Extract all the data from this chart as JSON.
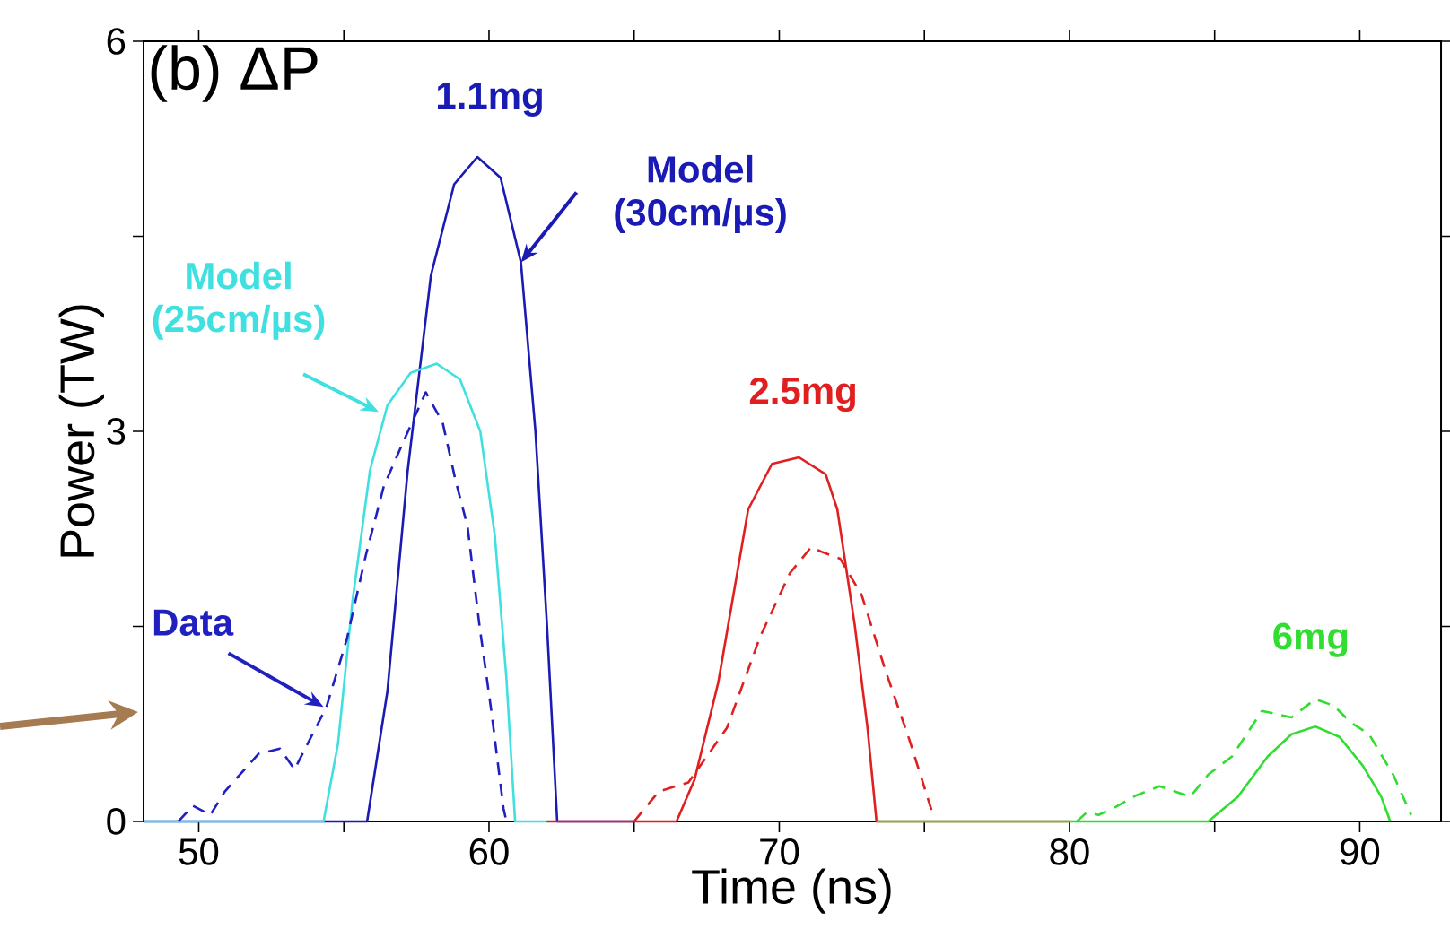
{
  "chart_data": {
    "type": "line",
    "xlabel": "Time (ns)",
    "ylabel": "Power (TW)",
    "xlim": [
      48.1,
      92.8
    ],
    "ylim": [
      0,
      6
    ],
    "xticks": [
      50,
      {
        "value": 55,
        "label": null
      },
      60,
      {
        "value": 65,
        "label": null
      },
      70,
      {
        "value": 75,
        "label": null
      },
      80,
      {
        "value": 85,
        "label": null
      },
      90
    ],
    "yticks": [
      0,
      {
        "value": 1.5,
        "label": null
      },
      3,
      {
        "value": 4.5,
        "label": null
      },
      6
    ],
    "series": [
      {
        "color": "#1a1ab4",
        "line_style": "solid",
        "x": [
          48.1,
          55.8,
          56.5,
          57.2,
          58.0,
          58.8,
          59.6,
          60.4,
          61.1,
          61.6,
          62.0,
          62.35,
          65.0
        ],
        "values": [
          0,
          0,
          1.0,
          2.7,
          4.2,
          4.9,
          5.11,
          4.95,
          4.3,
          3.0,
          1.5,
          0,
          0
        ]
      },
      {
        "color": "#40e0e0",
        "line_style": "solid",
        "x": [
          48.1,
          54.3,
          54.8,
          55.3,
          55.9,
          56.5,
          57.3,
          58.2,
          59.0,
          59.7,
          60.2,
          60.6,
          60.9,
          62.0
        ],
        "values": [
          0,
          0,
          0.6,
          1.7,
          2.7,
          3.2,
          3.45,
          3.52,
          3.4,
          3.0,
          2.2,
          1.1,
          0,
          0
        ]
      },
      {
        "color": "#2020c0",
        "line_style": "dashed",
        "x": [
          49.3,
          49.8,
          50.4,
          50.9,
          52.06,
          52.8,
          53.3,
          54.4,
          55.1,
          55.76,
          56.38,
          56.99,
          57.82,
          58.4,
          58.85,
          59.26,
          59.67,
          60.08,
          60.5,
          60.6
        ],
        "values": [
          0,
          0.12,
          0.05,
          0.23,
          0.52,
          0.56,
          0.4,
          0.88,
          1.4,
          2.05,
          2.58,
          2.89,
          3.3,
          3.07,
          2.62,
          2.27,
          1.51,
          0.85,
          0.1,
          0
        ]
      },
      {
        "color": "#e02020",
        "line_style": "solid",
        "x": [
          62.0,
          66.46,
          67.08,
          67.9,
          68.93,
          69.75,
          70.68,
          71.6,
          72.0,
          72.6,
          73.04,
          73.35,
          80.0
        ],
        "values": [
          0,
          0,
          0.32,
          1.07,
          2.4,
          2.75,
          2.8,
          2.67,
          2.4,
          1.51,
          0.72,
          0,
          0
        ]
      },
      {
        "color": "#e02020",
        "line_style": "dashed",
        "x": [
          65.0,
          65.85,
          66.87,
          68.2,
          69.34,
          70.37,
          71.1,
          71.5,
          72.1,
          72.84,
          73.66,
          74.48,
          75.3
        ],
        "values": [
          0,
          0.23,
          0.3,
          0.72,
          1.42,
          1.91,
          2.11,
          2.07,
          2.02,
          1.74,
          1.16,
          0.63,
          0.05
        ]
      },
      {
        "color": "#30dd30",
        "line_style": "solid",
        "x": [
          73.35,
          84.78,
          85.8,
          86.83,
          87.65,
          88.47,
          89.3,
          90.1,
          90.74,
          91.05
        ],
        "values": [
          0,
          0,
          0.19,
          0.5,
          0.67,
          0.73,
          0.65,
          0.43,
          0.19,
          0
        ]
      },
      {
        "color": "#30dd30",
        "line_style": "dashed",
        "x": [
          80.25,
          80.6,
          81.0,
          81.5,
          82.3,
          83.1,
          84.16,
          84.78,
          85.6,
          86.63,
          87.65,
          88.47,
          89.1,
          89.7,
          90.32,
          91.15,
          91.77
        ],
        "values": [
          0,
          0.07,
          0.05,
          0.1,
          0.2,
          0.27,
          0.19,
          0.36,
          0.5,
          0.85,
          0.8,
          0.94,
          0.89,
          0.76,
          0.67,
          0.36,
          0.05
        ]
      }
    ],
    "annotations": [
      "(b) ΔP",
      {
        "text": "1.1mg",
        "x": 59.6,
        "y": 5.11
      },
      {
        "text": "Model (30cm/µs)",
        "x": 61.1,
        "y": 4.3
      },
      {
        "text": "Model (25cm/µs)",
        "x": 56.2,
        "y": 3.15
      },
      {
        "text": "Data",
        "x": 54.3,
        "y": 0.88
      },
      {
        "text": "2.5mg",
        "x": 70.7,
        "y": 2.8
      },
      {
        "text": "6mg",
        "x": 88.5,
        "y": 0.94
      }
    ]
  }
}
